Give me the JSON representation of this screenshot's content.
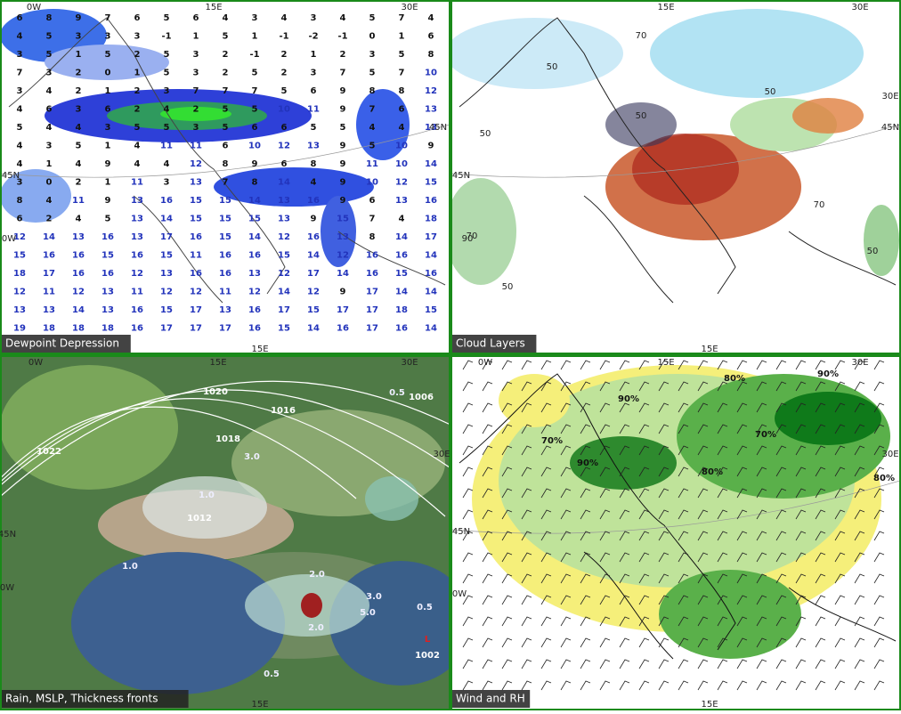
{
  "panels": [
    {
      "title": "Dewpoint Depression",
      "coords": [
        "0W",
        "15E",
        "30E",
        "45N",
        "45N",
        "0W",
        "15E"
      ],
      "dewpoints": [
        [
          6,
          8,
          9,
          7,
          6,
          5,
          6,
          4,
          3,
          4,
          3,
          4,
          5,
          7,
          4
        ],
        [
          4,
          5,
          3,
          3,
          3,
          -1,
          1,
          5,
          1,
          -1,
          -2,
          -1,
          0,
          1,
          6
        ],
        [
          3,
          5,
          1,
          5,
          2,
          5,
          3,
          2,
          -1,
          2,
          1,
          2,
          3,
          5,
          8
        ],
        [
          7,
          3,
          2,
          0,
          1,
          5,
          3,
          2,
          5,
          2,
          3,
          7,
          5,
          7,
          10
        ],
        [
          3,
          4,
          2,
          1,
          2,
          3,
          7,
          7,
          7,
          5,
          6,
          9,
          8,
          8,
          12
        ],
        [
          4,
          6,
          3,
          6,
          2,
          4,
          2,
          5,
          5,
          10,
          11,
          9,
          7,
          6,
          13
        ],
        [
          5,
          4,
          4,
          3,
          5,
          5,
          3,
          5,
          6,
          6,
          5,
          5,
          4,
          4,
          13
        ],
        [
          4,
          3,
          5,
          1,
          4,
          11,
          11,
          6,
          10,
          12,
          13,
          9,
          5,
          10,
          9
        ],
        [
          4,
          1,
          4,
          9,
          4,
          4,
          12,
          8,
          9,
          6,
          8,
          9,
          11,
          10,
          14
        ],
        [
          3,
          0,
          2,
          1,
          11,
          3,
          13,
          7,
          8,
          14,
          4,
          9,
          10,
          12,
          15
        ],
        [
          8,
          4,
          11,
          9,
          13,
          16,
          15,
          15,
          14,
          13,
          16,
          9,
          6,
          13,
          16
        ],
        [
          6,
          2,
          4,
          5,
          13,
          14,
          15,
          15,
          15,
          13,
          9,
          15,
          7,
          4,
          18
        ],
        [
          12,
          14,
          13,
          16,
          13,
          17,
          16,
          15,
          14,
          12,
          16,
          13,
          8,
          14,
          17
        ],
        [
          15,
          16,
          16,
          15,
          16,
          15,
          11,
          16,
          16,
          15,
          14,
          12,
          16,
          16,
          14
        ],
        [
          18,
          17,
          16,
          16,
          12,
          13,
          16,
          16,
          13,
          12,
          17,
          14,
          16,
          15,
          16
        ],
        [
          12,
          11,
          12,
          13,
          11,
          12,
          12,
          11,
          12,
          14,
          12,
          9,
          17,
          14,
          14
        ],
        [
          13,
          13,
          14,
          13,
          16,
          15,
          17,
          13,
          16,
          17,
          15,
          17,
          17,
          18,
          15
        ],
        [
          19,
          18,
          18,
          18,
          16,
          17,
          17,
          17,
          16,
          15,
          14,
          16,
          17,
          16,
          14
        ]
      ]
    },
    {
      "title": "Cloud Layers",
      "coords": [
        "15E",
        "30E",
        "30E",
        "45N",
        "45N",
        "15E"
      ],
      "contour_labels": [
        "50",
        "50",
        "70",
        "50",
        "70",
        "50",
        "90",
        "50",
        "50",
        "70"
      ]
    },
    {
      "title": "Rain, MSLP, Thickness fronts",
      "coords": [
        "0W",
        "15E",
        "30E",
        "30E",
        "45N",
        "0W",
        "15E"
      ],
      "isobar_labels": [
        "1020",
        "1016",
        "1006",
        "1022",
        "1018",
        "1012",
        "1002"
      ],
      "rain_labels": [
        "0.5",
        "3.0",
        "1.0",
        "1.0",
        "2.0",
        "5.0",
        "3.0",
        "0.5",
        "2.0",
        "0.5"
      ],
      "low_marker": "L"
    },
    {
      "title": "Wind and RH",
      "coords": [
        "0W",
        "15E",
        "30E",
        "30E",
        "45N",
        "0W",
        "15E"
      ],
      "rh_labels": [
        "90%",
        "80%",
        "70%",
        "90%",
        "80%",
        "70%",
        "80%",
        "90%"
      ]
    }
  ]
}
